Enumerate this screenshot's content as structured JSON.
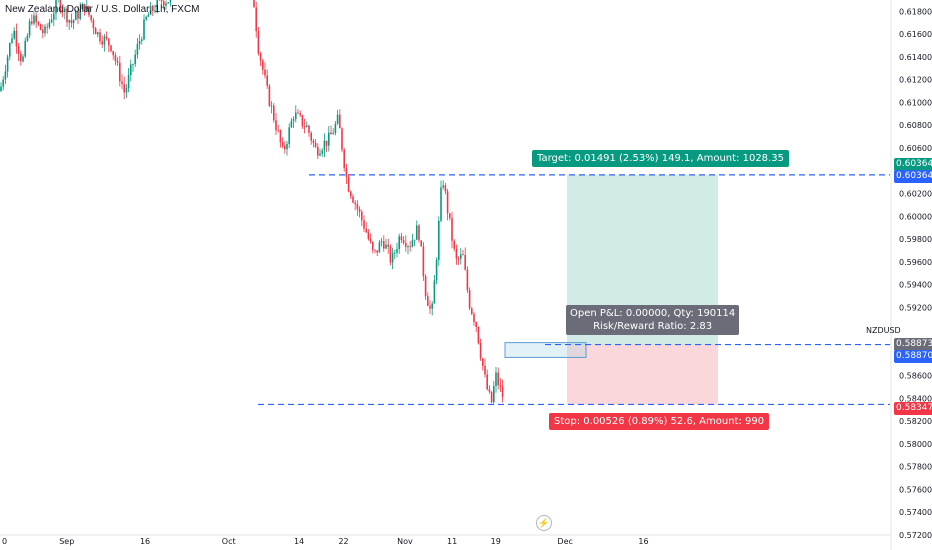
{
  "header": {
    "title": "New Zealand Dollar / U.S. Dollar, 1h, FXCM"
  },
  "chart_data": {
    "type": "candlestick",
    "symbol": "NZDUSD",
    "ylim": [
      0.572,
      0.619
    ],
    "price_ticks": [
      "0.61800",
      "0.61600",
      "0.61400",
      "0.61200",
      "0.61000",
      "0.60800",
      "0.60600",
      "0.60400",
      "0.60200",
      "0.60000",
      "0.59800",
      "0.59600",
      "0.59400",
      "0.59200",
      "0.58800",
      "0.58600",
      "0.58400",
      "0.58200",
      "0.58000",
      "0.57800",
      "0.57600",
      "0.57400",
      "0.57200"
    ],
    "price_tick_values": [
      0.618,
      0.616,
      0.614,
      0.612,
      0.61,
      0.608,
      0.606,
      0.604,
      0.602,
      0.6,
      0.598,
      0.596,
      0.594,
      0.592,
      0.588,
      0.586,
      0.584,
      0.582,
      0.58,
      0.578,
      0.576,
      0.574,
      0.572
    ],
    "time_ticks": [
      {
        "label": "0",
        "pos": 0.0
      },
      {
        "label": "Sep",
        "pos": 0.075
      },
      {
        "label": "16",
        "pos": 0.163
      },
      {
        "label": "Oct",
        "pos": 0.257
      },
      {
        "label": "14",
        "pos": 0.336
      },
      {
        "label": "22",
        "pos": 0.386
      },
      {
        "label": "Nov",
        "pos": 0.455
      },
      {
        "label": "11",
        "pos": 0.508
      },
      {
        "label": "19",
        "pos": 0.557
      },
      {
        "label": "Dec",
        "pos": 0.635
      },
      {
        "label": "16",
        "pos": 0.723
      }
    ],
    "price_path": [
      [
        0.0,
        0.611
      ],
      [
        0.015,
        0.6165
      ],
      [
        0.025,
        0.6135
      ],
      [
        0.035,
        0.6175
      ],
      [
        0.05,
        0.616
      ],
      [
        0.065,
        0.619
      ],
      [
        0.08,
        0.617
      ],
      [
        0.095,
        0.6185
      ],
      [
        0.11,
        0.616
      ],
      [
        0.125,
        0.615
      ],
      [
        0.14,
        0.6108
      ],
      [
        0.155,
        0.615
      ],
      [
        0.165,
        0.6175
      ],
      [
        0.18,
        0.619
      ],
      [
        0.195,
        0.619
      ],
      [
        0.285,
        0.619
      ],
      [
        0.29,
        0.615
      ],
      [
        0.3,
        0.611
      ],
      [
        0.31,
        0.608
      ],
      [
        0.318,
        0.6055
      ],
      [
        0.33,
        0.609
      ],
      [
        0.345,
        0.6078
      ],
      [
        0.355,
        0.6058
      ],
      [
        0.37,
        0.6068
      ],
      [
        0.38,
        0.6085
      ],
      [
        0.39,
        0.603
      ],
      [
        0.4,
        0.601
      ],
      [
        0.41,
        0.599
      ],
      [
        0.42,
        0.5965
      ],
      [
        0.43,
        0.598
      ],
      [
        0.44,
        0.596
      ],
      [
        0.45,
        0.5985
      ],
      [
        0.46,
        0.5975
      ],
      [
        0.47,
        0.599
      ],
      [
        0.478,
        0.5935
      ],
      [
        0.485,
        0.5912
      ],
      [
        0.49,
        0.596
      ],
      [
        0.497,
        0.6036
      ],
      [
        0.505,
        0.5995
      ],
      [
        0.512,
        0.596
      ],
      [
        0.52,
        0.5965
      ],
      [
        0.527,
        0.5925
      ],
      [
        0.535,
        0.5905
      ],
      [
        0.54,
        0.588
      ],
      [
        0.546,
        0.5852
      ],
      [
        0.552,
        0.5835
      ],
      [
        0.557,
        0.586
      ],
      [
        0.562,
        0.5848
      ],
      [
        0.567,
        0.5838
      ]
    ],
    "levels": {
      "target": 0.60364,
      "entry": 0.58873,
      "entry_alt": 0.5887,
      "stop": 0.58347
    },
    "position_labels": {
      "target": "Target: 0.01491 (2.53%) 149.1, Amount: 1028.35",
      "stop": "Stop: 0.00526 (0.89%) 52.6, Amount: 990",
      "pnl_line1": "Open P&L: 0.00000, Qty: 190114",
      "pnl_line2": "Risk/Reward Ratio: 2.83"
    },
    "price_labels": {
      "target_top": "0.60364",
      "target_bottom": "0.60364",
      "entry_top": "0.58873",
      "entry_bottom": "0.58870",
      "stop": "0.58347"
    },
    "colors": {
      "up": "#089981",
      "down": "#f23645",
      "dash": "#2962ff",
      "profit_zone": "#d1ebe6",
      "loss_zone": "#fad7da",
      "label_blue": "#2962ff",
      "label_gray": "#6a6d78"
    }
  }
}
